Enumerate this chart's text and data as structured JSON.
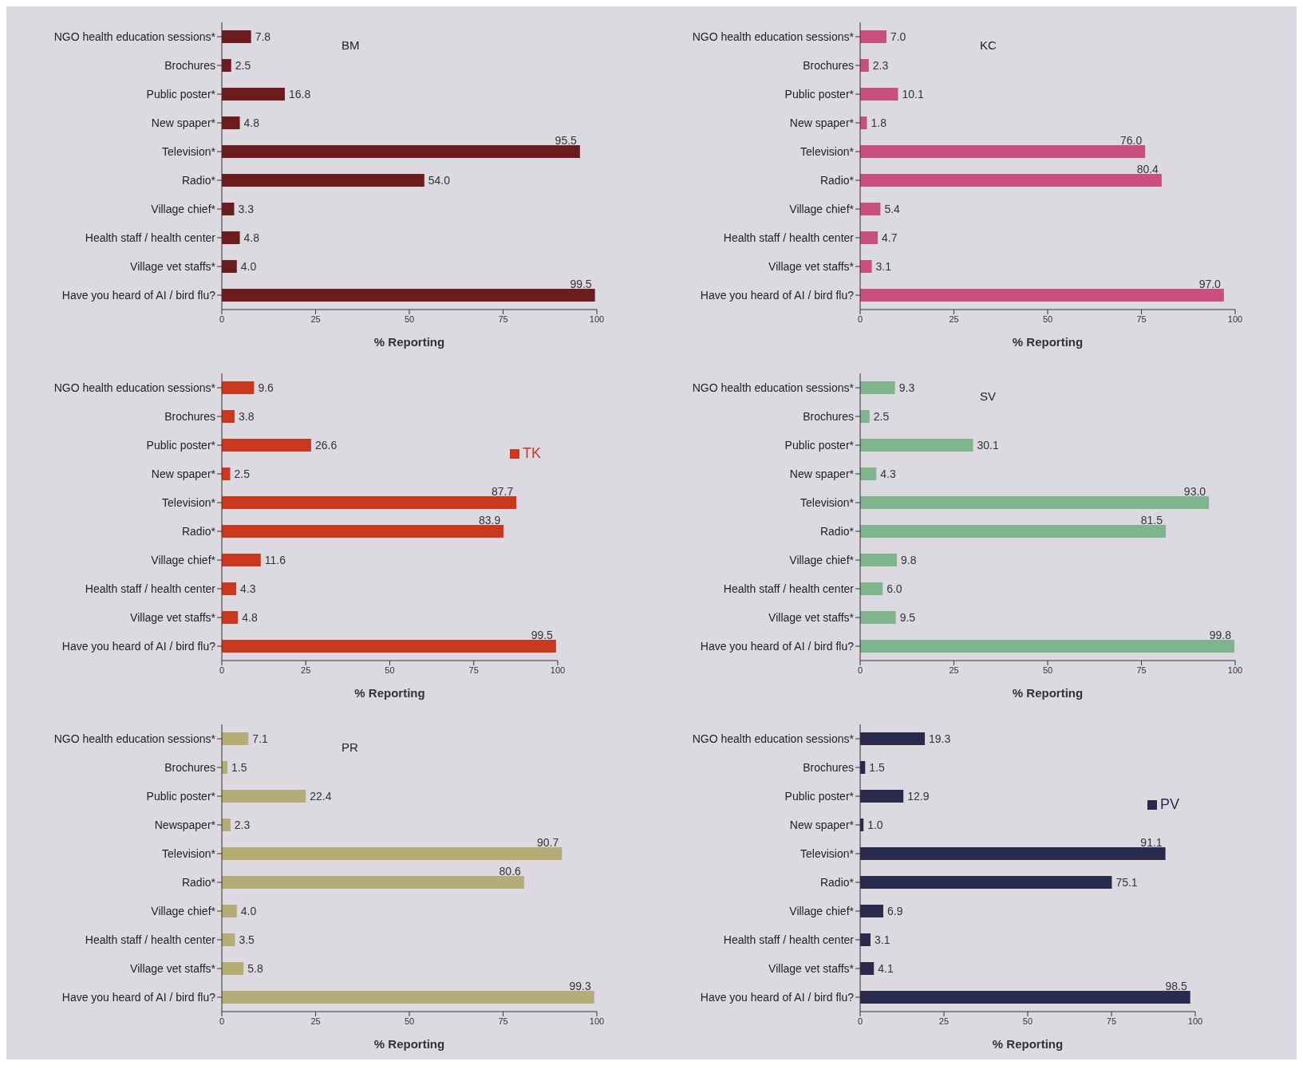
{
  "chart_data": [
    {
      "type": "bar",
      "orientation": "horizontal",
      "categories": [
        "NGO health education sessions*",
        "Brochures",
        "Public poster*",
        "New spaper*",
        "Television*",
        "Radio*",
        "Village chief*",
        "Health staff / health center",
        "Village vet staffs*",
        "Have you heard of AI / bird flu?"
      ],
      "series": [
        {
          "color": "#6b1c1c",
          "values": [
            7.8,
            2.5,
            16.8,
            4.8,
            95.5,
            54.0,
            3.3,
            4.8,
            4.0,
            99.5
          ],
          "value_labels": [
            "7.8",
            "2.5",
            "16.8",
            "4.8",
            "95.5",
            "54.0",
            "3.3",
            "4.8",
            "4.0",
            "99.5"
          ]
        }
      ],
      "annotations": [
        "BM"
      ],
      "xlim": [
        0,
        100
      ],
      "xticks": [
        0,
        25,
        50,
        75,
        100
      ],
      "xlabel": "% Reporting",
      "grid": false,
      "legend": false
    },
    {
      "type": "bar",
      "orientation": "horizontal",
      "categories": [
        "NGO health education sessions*",
        "Brochures",
        "Public poster*",
        "New spaper*",
        "Television*",
        "Radio*",
        "Village chief*",
        "Health staff / health center",
        "Village vet staffs*",
        "Have you heard of AI / bird flu?"
      ],
      "series": [
        {
          "color": "#c8507e",
          "values": [
            7.0,
            2.3,
            10.1,
            1.8,
            76.0,
            80.4,
            5.4,
            4.7,
            3.1,
            97.0
          ],
          "value_labels": [
            "7.0",
            "2.3",
            "10.1",
            "1.8",
            "76.0",
            "80.4",
            "5.4",
            "4.7",
            "3.1",
            "97.0"
          ]
        }
      ],
      "annotations": [
        "KC"
      ],
      "xlim": [
        0,
        100
      ],
      "xticks": [
        0,
        25,
        50,
        75,
        100
      ],
      "xlabel": "% Reporting",
      "grid": false,
      "legend": false
    },
    {
      "type": "bar",
      "orientation": "horizontal",
      "categories": [
        "NGO health education sessions*",
        "Brochures",
        "Public poster*",
        "New spaper*",
        "Television*",
        "Radio*",
        "Village chief*",
        "Health staff / health center",
        "Village vet staffs*",
        "Have you heard of AI / bird flu?"
      ],
      "series": [
        {
          "name": "TK",
          "color": "#c8391f",
          "values": [
            9.6,
            3.8,
            26.6,
            2.5,
            87.7,
            83.9,
            11.6,
            4.3,
            4.8,
            99.5
          ],
          "value_labels": [
            "9.6",
            "3.8",
            "26.6",
            "2.5",
            "87.7",
            "83.9",
            "11.6",
            "4.3",
            "4.8",
            "99.5"
          ]
        }
      ],
      "xlim": [
        0,
        100
      ],
      "xticks": [
        0,
        25,
        50,
        75,
        100
      ],
      "xlabel": "% Reporting",
      "grid": false,
      "legend": "top right"
    },
    {
      "type": "bar",
      "orientation": "horizontal",
      "categories": [
        "NGO health education sessions*",
        "Brochures",
        "Public poster*",
        "New spaper*",
        "Television*",
        "Radio*",
        "Village chief*",
        "Health staff / health center",
        "Village vet staffs*",
        "Have you heard of AI / bird flu?"
      ],
      "series": [
        {
          "color": "#7fb58c",
          "values": [
            9.3,
            2.5,
            30.1,
            4.3,
            93.0,
            81.5,
            9.8,
            6.0,
            9.5,
            99.8
          ],
          "value_labels": [
            "9.3",
            "2.5",
            "30.1",
            "4.3",
            "93.0",
            "81.5",
            "9.8",
            "6.0",
            "9.5",
            "99.8"
          ]
        }
      ],
      "annotations": [
        "SV"
      ],
      "xlim": [
        0,
        100
      ],
      "xticks": [
        0,
        25,
        50,
        75,
        100
      ],
      "xlabel": "% Reporting",
      "grid": false,
      "legend": false
    },
    {
      "type": "bar",
      "orientation": "horizontal",
      "categories": [
        "NGO health education sessions*",
        "Brochures",
        "Public poster*",
        "Newspaper*",
        "Television*",
        "Radio*",
        "Village chief*",
        "Health staff / health center",
        "Village vet staffs*",
        "Have you heard of AI / bird flu?"
      ],
      "series": [
        {
          "color": "#b5ad78",
          "values": [
            7.1,
            1.5,
            22.4,
            2.3,
            90.7,
            80.6,
            4.0,
            3.5,
            5.8,
            99.3
          ],
          "value_labels": [
            "7.1",
            "1.5",
            "22.4",
            "2.3",
            "90.7",
            "80.6",
            "4.0",
            "3.5",
            "5.8",
            "99.3"
          ]
        }
      ],
      "annotations": [
        "PR"
      ],
      "xlim": [
        0,
        100
      ],
      "xticks": [
        0,
        25,
        50,
        75,
        100
      ],
      "xlabel": "% Reporting",
      "grid": false,
      "legend": false
    },
    {
      "type": "bar",
      "orientation": "horizontal",
      "categories": [
        "NGO health education sessions*",
        "Brochures",
        "Public poster*",
        "New spaper*",
        "Television*",
        "Radio*",
        "Village chief*",
        "Health staff / health center",
        "Village vet staffs*",
        "Have you heard of AI / bird flu?"
      ],
      "series": [
        {
          "name": "PV",
          "color": "#2a2a4e",
          "values": [
            19.3,
            1.5,
            12.9,
            1.0,
            91.1,
            75.1,
            6.9,
            3.1,
            4.1,
            98.5
          ],
          "value_labels": [
            "19.3",
            "1.5",
            "12.9",
            "1.0",
            "91.1",
            "75.1",
            "6.9",
            "3.1",
            "4.1",
            "98.5"
          ]
        }
      ],
      "xlim": [
        0,
        100
      ],
      "xticks": [
        0,
        25,
        50,
        75,
        100
      ],
      "xlabel": "% Reporting",
      "grid": false,
      "legend": "top right"
    }
  ]
}
